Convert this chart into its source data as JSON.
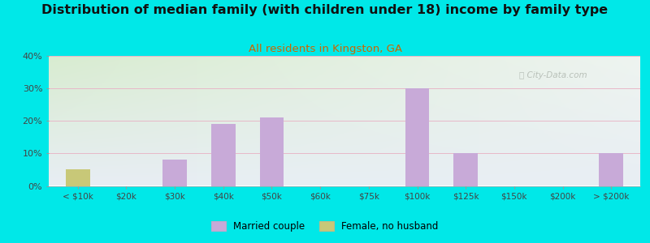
{
  "title": "Distribution of median family (with children under 18) income by family type",
  "subtitle": "All residents in Kingston, GA",
  "title_fontsize": 11.5,
  "subtitle_fontsize": 9.5,
  "subtitle_color": "#cc6600",
  "background_outer": "#00e8e8",
  "categories": [
    "< $10k",
    "$20k",
    "$30k",
    "$40k",
    "$50k",
    "$60k",
    "$75k",
    "$100k",
    "$125k",
    "$150k",
    "$200k",
    "> $200k"
  ],
  "married_couple": [
    0,
    0,
    8,
    19,
    21,
    0,
    0,
    30,
    10,
    0,
    0,
    10
  ],
  "female_no_husband": [
    5,
    0,
    0,
    0,
    0,
    0,
    0,
    0,
    0,
    0,
    0,
    0
  ],
  "married_color": "#c8aad8",
  "female_color": "#c8c878",
  "ylim": [
    0,
    40
  ],
  "yticks": [
    0,
    10,
    20,
    30,
    40
  ],
  "ytick_labels": [
    "0%",
    "10%",
    "20%",
    "30%",
    "40%"
  ],
  "grid_color": "#e8b8c8",
  "watermark": "City-Data.com",
  "legend_married": "Married couple",
  "legend_female": "Female, no husband",
  "bar_width": 0.5,
  "chart_bg_topleft": "#d8ecd0",
  "chart_bg_topright": "#e8f0e8",
  "chart_bg_bottomleft": "#e8ddf0",
  "chart_bg_bottomright": "#f4f0f8"
}
